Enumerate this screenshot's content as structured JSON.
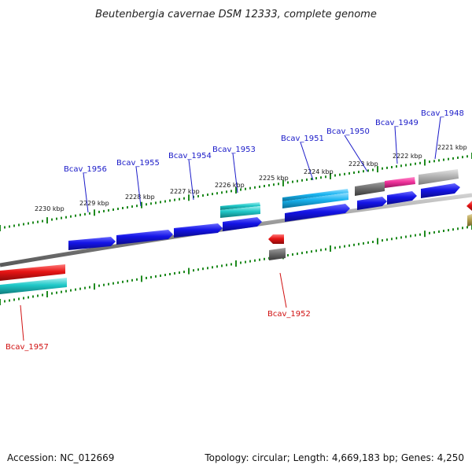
{
  "title": "Beutenbergia cavernae DSM 12333, complete genome",
  "footer": {
    "accession": "Accession: NC_012669",
    "summary": "Topology: circular; Length: 4,669,183 bp; Genes: 4,250"
  },
  "scale_labels": [
    "2230 kbp",
    "2229 kbp",
    "2228 kbp",
    "2227 kbp",
    "2226 kbp",
    "2225 kbp",
    "2224 kbp",
    "2223 kbp",
    "2222 kbp",
    "2221 kbp"
  ],
  "gene_labels": {
    "forward": [
      "Bcav_1956",
      "Bcav_1955",
      "Bcav_1954",
      "Bcav_1953",
      "Bcav_1951",
      "Bcav_1950",
      "Bcav_1949",
      "Bcav_1948"
    ],
    "reverse": [
      "Bcav_1957",
      "Bcav_1952"
    ]
  },
  "colors": {
    "forward_label": "#1a1ac8",
    "reverse_label": "#d01010",
    "tick": "#1f8a1f",
    "blue_gene": "#1414e6",
    "cyan_gene": "#1fc8c8",
    "sky_gene": "#19b4f0",
    "grey_gene": "#6e6e6e",
    "light_grey_gene": "#b4b4b4",
    "pink_gene": "#f0329b",
    "red_gene": "#e61414",
    "olive_gene": "#b4a050",
    "backbone": "#8c8c8c"
  }
}
